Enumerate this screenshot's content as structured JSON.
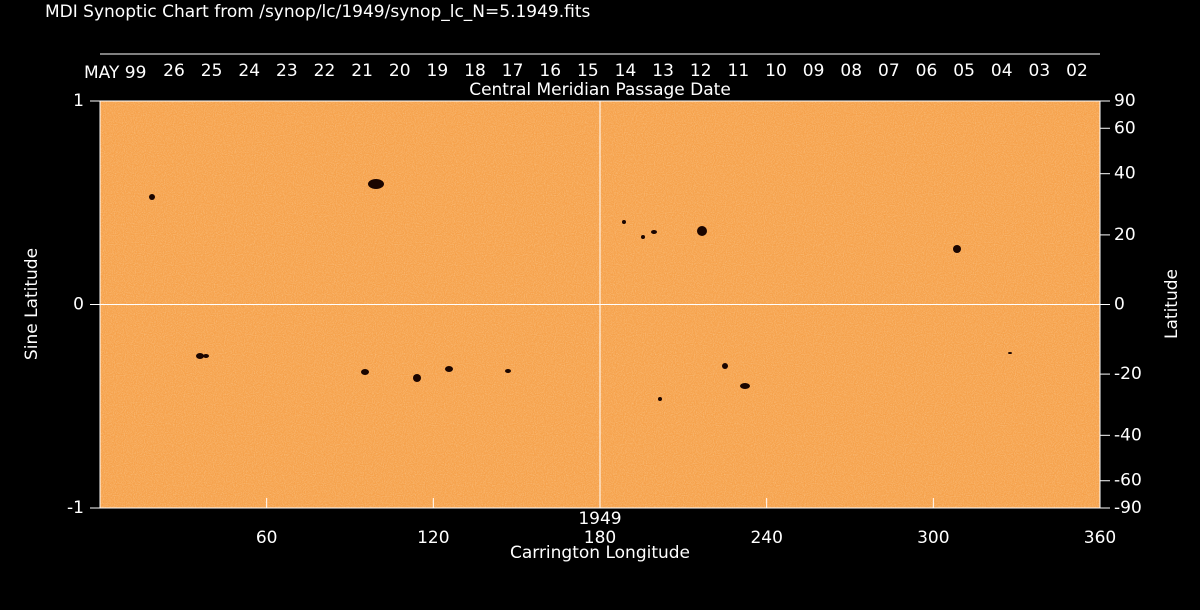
{
  "chart_data": {
    "type": "synoptic",
    "title": "MDI Synoptic Chart from /synop/lc/1949/synop_lc_N=5.1949.fits",
    "top_axis_label": "Central Meridian Passage Date",
    "categories": [
      "MAY 99",
      "26",
      "25",
      "24",
      "23",
      "22",
      "21",
      "20",
      "19",
      "18",
      "17",
      "16",
      "15",
      "14",
      "13",
      "12",
      "11",
      "10",
      "09",
      "08",
      "07",
      "06",
      "05",
      "04",
      "03",
      "02"
    ],
    "annotation": "1949",
    "xlabel": "Carrington Longitude",
    "ylabel": "Sine Latitude",
    "y2label": "Latitude",
    "xlim": [
      0,
      360
    ],
    "xticks": [
      60,
      120,
      180,
      240,
      300,
      360
    ],
    "annotation_x": 180,
    "ylim": [
      -1,
      1
    ],
    "yticks": [
      -1,
      0,
      1
    ],
    "y2lim": [
      -90,
      90
    ],
    "y2scale": "sine",
    "y2ticks": [
      90,
      60,
      40,
      20,
      0,
      -20,
      -40,
      -60,
      -90
    ],
    "xgrid": [
      180
    ],
    "ygrid": [
      0
    ],
    "color": "#f6a24c"
  }
}
